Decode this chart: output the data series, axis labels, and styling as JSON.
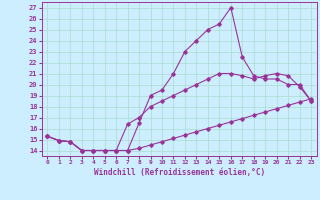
{
  "xlabel": "Windchill (Refroidissement éolien,°C)",
  "x": [
    0,
    1,
    2,
    3,
    4,
    5,
    6,
    7,
    8,
    9,
    10,
    11,
    12,
    13,
    14,
    15,
    16,
    17,
    18,
    19,
    20,
    21,
    22,
    23
  ],
  "line1": [
    15.3,
    14.9,
    14.8,
    14.0,
    14.0,
    14.0,
    14.0,
    14.0,
    14.2,
    14.5,
    14.8,
    15.1,
    15.4,
    15.7,
    16.0,
    16.3,
    16.6,
    16.9,
    17.2,
    17.5,
    17.8,
    18.1,
    18.4,
    18.7
  ],
  "line2": [
    15.3,
    14.9,
    14.8,
    14.0,
    14.0,
    14.0,
    14.0,
    14.0,
    16.5,
    19.0,
    19.5,
    21.0,
    23.0,
    24.0,
    25.0,
    25.5,
    27.0,
    22.5,
    20.8,
    20.5,
    20.5,
    20.0,
    20.0,
    18.5
  ],
  "line3": [
    15.3,
    14.9,
    14.8,
    14.0,
    14.0,
    14.0,
    14.0,
    16.4,
    17.0,
    18.0,
    18.5,
    19.0,
    19.5,
    20.0,
    20.5,
    21.0,
    21.0,
    20.8,
    20.5,
    20.8,
    21.0,
    20.8,
    19.8,
    18.5
  ],
  "line_color": "#993399",
  "bg_color": "#cceeff",
  "grid_color": "#aaddcc",
  "ylim": [
    13.5,
    27.5
  ],
  "xlim": [
    -0.5,
    23.5
  ],
  "yticks": [
    14,
    15,
    16,
    17,
    18,
    19,
    20,
    21,
    22,
    23,
    24,
    25,
    26,
    27
  ],
  "xticks": [
    0,
    1,
    2,
    3,
    4,
    5,
    6,
    7,
    8,
    9,
    10,
    11,
    12,
    13,
    14,
    15,
    16,
    17,
    18,
    19,
    20,
    21,
    22,
    23
  ]
}
